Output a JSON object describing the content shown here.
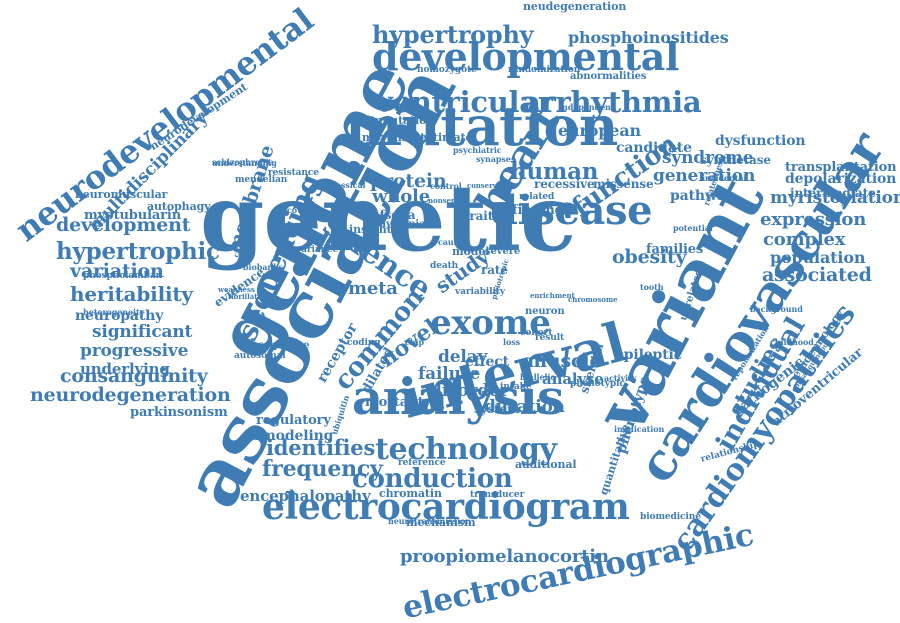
{
  "color": "#3f7cb4",
  "words": [
    "genetic",
    "association",
    "genome",
    "variant",
    "mutation",
    "analysis",
    "interval",
    "cardiovascular",
    "developmental",
    "disease",
    "electrocardiogram",
    "electrocardiographic",
    "technology",
    "conduction",
    "exome",
    "cardiomyopathies",
    "neurodevelopmental",
    "ventricular",
    "arrhythmia",
    "hypertrophy",
    "science",
    "sequencing",
    "heart",
    "individual",
    "function",
    "studies",
    "common",
    "frequency",
    "identifies",
    "phosphoinositides",
    "proopiomelanocortin",
    "hypertrophic",
    "development",
    "consanguinity",
    "neurodegeneration",
    "heritability",
    "variation",
    "associated",
    "population",
    "complex",
    "expression",
    "myristoylation",
    "depolarization",
    "transplantation",
    "intermediate",
    "generation",
    "syndrome",
    "human",
    "european",
    "protein",
    "whole",
    "obesity",
    "novel",
    "study",
    "meta",
    "delay",
    "failure",
    "muscle",
    "disorder",
    "duration",
    "analyse",
    "mortality",
    "encephalopathy",
    "remodeling",
    "regulatory",
    "progressive",
    "significant",
    "underlying",
    "parkinsonism",
    "neuropathy",
    "multidisciplinary",
    "membrane",
    "myotubularin",
    "neuromuscular",
    "autophagy",
    "neurodevelopment",
    "schizophrenia",
    "imputation",
    "movement",
    "estimate",
    "dystonia",
    "insight",
    "mfsd2a",
    "families",
    "pathway",
    "finding",
    "trait",
    "recessive",
    "missense",
    "candidate",
    "dysfunction",
    "synthetase",
    "homozygote",
    "randomization",
    "abnormalities",
    "neudegeneration",
    "pathogenic",
    "atrioventricular",
    "epileptic",
    "skeletal",
    "quantitative",
    "phenotype",
    "mechanism",
    "chromatin",
    "transducer",
    "biomedicine",
    "additional",
    "reference",
    "sequence",
    "receptor",
    "dilated",
    "effect",
    "system",
    "cohort",
    "neuron",
    "result",
    "related",
    "potential",
    "relatedness",
    "incidental",
    "resistance",
    "discovery",
    "variance",
    "biobanks",
    "phospholamban",
    "epidemiology",
    "childhood",
    "relationship",
    "repolarization",
    "heterogeneity",
    "evidence",
    "autosomal",
    "mendelian",
    "classical",
    "coding",
    "chip",
    "loss",
    "rate",
    "severe",
    "model",
    "cause",
    "death",
    "unrelated",
    "background",
    "activity",
    "ubiquitin",
    "tooth",
    "independent",
    "synapse",
    "psychiatric",
    "neurotransmission",
    "understanding",
    "weakness",
    "circumference",
    "fibrillation",
    "phenotypic",
    "variability",
    "biallelic",
    "implication",
    "intake",
    "nonsense",
    "control",
    "chromosome",
    "consanguineous",
    "pleiotropic",
    "enrichment",
    "conservation"
  ]
}
